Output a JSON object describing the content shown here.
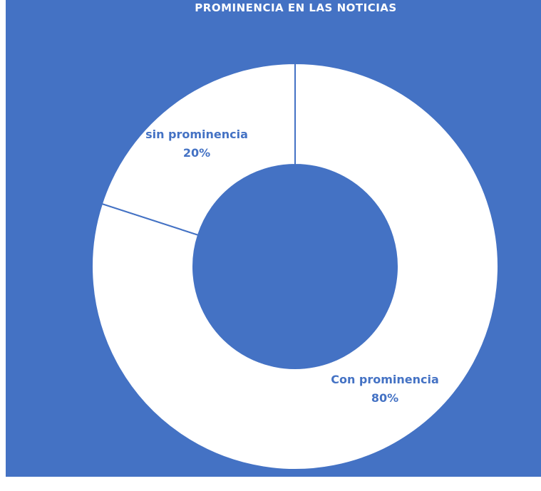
{
  "chart_data": {
    "type": "pie",
    "title": "PROMINENCIA EN LAS NOTICIAS",
    "donut": true,
    "slices": [
      {
        "label": "Con prominencia",
        "value": 80,
        "percent_label": "80%"
      },
      {
        "label": "sin prominencia",
        "value": 20,
        "percent_label": "20%"
      }
    ],
    "colors": {
      "background": "#4472c4",
      "slice_fill": "#ffffff",
      "separator": "#4472c4",
      "label_text": "#4472c4"
    }
  }
}
